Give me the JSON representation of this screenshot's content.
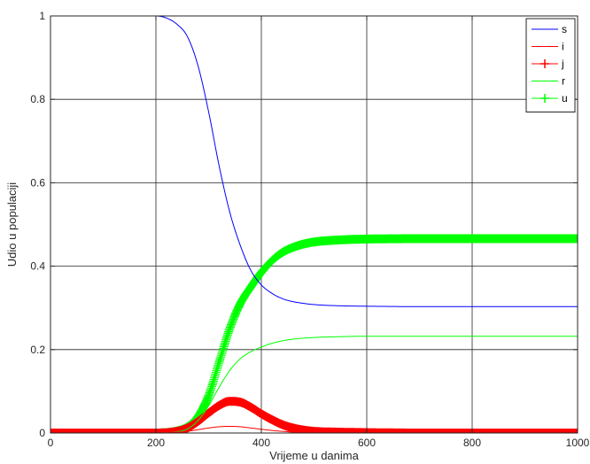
{
  "chart_data": {
    "type": "line",
    "title": "",
    "xlabel": "Vrijeme u danima",
    "ylabel": "Udio u populaciji",
    "xlim": [
      0,
      1000
    ],
    "ylim": [
      0,
      1
    ],
    "xticks": [
      0,
      200,
      400,
      600,
      800,
      1000
    ],
    "yticks": [
      0,
      0.2,
      0.4,
      0.6,
      0.8,
      1
    ],
    "xtick_labels": [
      "0",
      "200",
      "400",
      "600",
      "800",
      "1000"
    ],
    "ytick_labels": [
      "0",
      "0.2",
      "0.4",
      "0.6",
      "0.8",
      "1"
    ],
    "grid": true,
    "legend_position": "top-right",
    "series": [
      {
        "name": "s",
        "color": "#0000ff",
        "marker": "none",
        "points": [
          [
            0,
            1
          ],
          [
            200,
            1
          ],
          [
            220,
            0.995
          ],
          [
            240,
            0.98
          ],
          [
            260,
            0.95
          ],
          [
            280,
            0.88
          ],
          [
            300,
            0.77
          ],
          [
            320,
            0.64
          ],
          [
            340,
            0.53
          ],
          [
            360,
            0.45
          ],
          [
            380,
            0.39
          ],
          [
            400,
            0.355
          ],
          [
            420,
            0.335
          ],
          [
            440,
            0.322
          ],
          [
            460,
            0.315
          ],
          [
            500,
            0.308
          ],
          [
            550,
            0.305
          ],
          [
            600,
            0.304
          ],
          [
            700,
            0.303
          ],
          [
            1000,
            0.303
          ]
        ]
      },
      {
        "name": "i",
        "color": "#ff0000",
        "marker": "none",
        "points": [
          [
            0,
            0
          ],
          [
            200,
            0
          ],
          [
            240,
            0.002
          ],
          [
            260,
            0.004
          ],
          [
            280,
            0.008
          ],
          [
            300,
            0.012
          ],
          [
            320,
            0.015
          ],
          [
            340,
            0.016
          ],
          [
            360,
            0.015
          ],
          [
            380,
            0.012
          ],
          [
            400,
            0.009
          ],
          [
            420,
            0.006
          ],
          [
            440,
            0.004
          ],
          [
            460,
            0.002
          ],
          [
            500,
            0.001
          ],
          [
            600,
            0
          ],
          [
            1000,
            0
          ]
        ]
      },
      {
        "name": "j",
        "color": "#ff0000",
        "marker": "plus",
        "points": [
          [
            0,
            0
          ],
          [
            200,
            0
          ],
          [
            240,
            0.004
          ],
          [
            260,
            0.012
          ],
          [
            280,
            0.028
          ],
          [
            300,
            0.048
          ],
          [
            320,
            0.066
          ],
          [
            340,
            0.076
          ],
          [
            360,
            0.074
          ],
          [
            380,
            0.062
          ],
          [
            400,
            0.046
          ],
          [
            420,
            0.032
          ],
          [
            440,
            0.02
          ],
          [
            460,
            0.012
          ],
          [
            480,
            0.007
          ],
          [
            500,
            0.004
          ],
          [
            550,
            0.002
          ],
          [
            600,
            0.001
          ],
          [
            700,
            0
          ],
          [
            1000,
            0
          ]
        ]
      },
      {
        "name": "r",
        "color": "#00ff00",
        "marker": "none",
        "points": [
          [
            0,
            0
          ],
          [
            200,
            0
          ],
          [
            240,
            0.003
          ],
          [
            260,
            0.01
          ],
          [
            280,
            0.03
          ],
          [
            300,
            0.065
          ],
          [
            320,
            0.11
          ],
          [
            340,
            0.15
          ],
          [
            360,
            0.178
          ],
          [
            380,
            0.195
          ],
          [
            400,
            0.206
          ],
          [
            420,
            0.215
          ],
          [
            440,
            0.221
          ],
          [
            460,
            0.225
          ],
          [
            500,
            0.229
          ],
          [
            550,
            0.231
          ],
          [
            600,
            0.232
          ],
          [
            1000,
            0.232
          ]
        ]
      },
      {
        "name": "u",
        "color": "#00ff00",
        "marker": "plus",
        "points": [
          [
            0,
            0
          ],
          [
            200,
            0
          ],
          [
            240,
            0.005
          ],
          [
            260,
            0.015
          ],
          [
            280,
            0.04
          ],
          [
            300,
            0.09
          ],
          [
            320,
            0.17
          ],
          [
            340,
            0.25
          ],
          [
            360,
            0.31
          ],
          [
            380,
            0.35
          ],
          [
            400,
            0.385
          ],
          [
            420,
            0.413
          ],
          [
            440,
            0.433
          ],
          [
            460,
            0.445
          ],
          [
            480,
            0.453
          ],
          [
            500,
            0.458
          ],
          [
            550,
            0.463
          ],
          [
            600,
            0.465
          ],
          [
            700,
            0.466
          ],
          [
            1000,
            0.466
          ]
        ]
      }
    ]
  }
}
